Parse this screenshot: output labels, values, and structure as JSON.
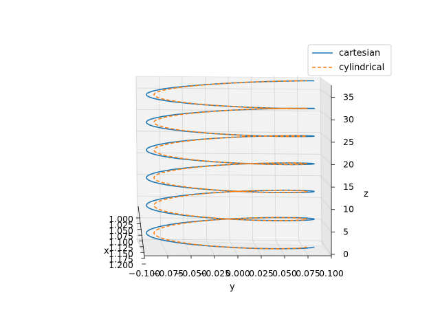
{
  "chart_data": {
    "type": "line",
    "projection": "3d",
    "title": "",
    "xlabel": "x",
    "ylabel": "y",
    "zlabel": "z",
    "x_ticks": [
      "1.000",
      "1.025",
      "1.050",
      "1.075",
      "1.100",
      "1.125",
      "1.150",
      "1.175",
      "1.200"
    ],
    "y_ticks": [
      "−0.100",
      "−0.075",
      "−0.050",
      "−0.025",
      "0.000",
      "0.025",
      "0.050",
      "0.075",
      "0.100"
    ],
    "z_ticks": [
      "0",
      "5",
      "10",
      "15",
      "20",
      "25",
      "30",
      "35"
    ],
    "zlim": [
      0,
      37.7
    ],
    "grid": true,
    "legend": {
      "placement": "top-right"
    },
    "series": [
      {
        "name": "cartesian",
        "color": "#1f77b4",
        "linestyle": "solid",
        "parametric": {
          "turns": 6,
          "t_start": 0,
          "t_end": 37.7,
          "z_equals_t": true,
          "radius": 1.0
        }
      },
      {
        "name": "cylindrical",
        "color": "#ff7f0e",
        "linestyle": "dashed",
        "parametric": {
          "turns": 6,
          "t_start": 0,
          "t_end": 37.7,
          "z_equals_t": true,
          "radius": 1.0
        }
      }
    ]
  }
}
